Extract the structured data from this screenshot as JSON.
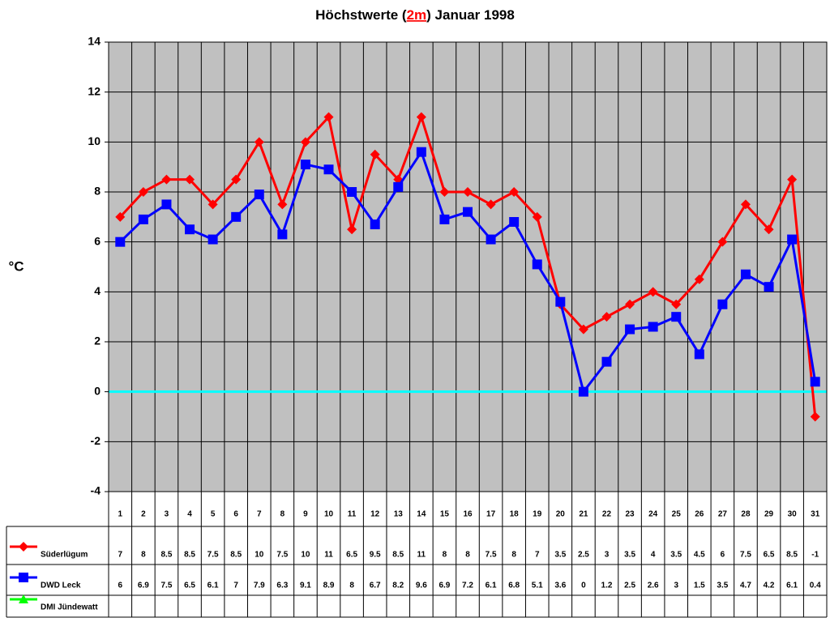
{
  "chart_data": {
    "type": "line",
    "title": [
      "Höchstwerte (",
      "2m",
      ") Januar 1998"
    ],
    "y_label": "°C",
    "categories": [
      "1",
      "2",
      "3",
      "4",
      "5",
      "6",
      "7",
      "8",
      "9",
      "10",
      "11",
      "12",
      "13",
      "14",
      "15",
      "16",
      "17",
      "18",
      "19",
      "20",
      "21",
      "22",
      "23",
      "24",
      "25",
      "26",
      "27",
      "28",
      "29",
      "30",
      "31"
    ],
    "series": [
      {
        "name": "Süderlügum",
        "color": "#ff0000",
        "marker": "diamond",
        "values": [
          7,
          8,
          8.5,
          8.5,
          7.5,
          8.5,
          10,
          7.5,
          10,
          11,
          6.5,
          9.5,
          8.5,
          11,
          8,
          8,
          7.5,
          8,
          7,
          3.5,
          2.5,
          3,
          3.5,
          4,
          3.5,
          4.5,
          6,
          7.5,
          6.5,
          8.5,
          -1
        ]
      },
      {
        "name": "DWD Leck",
        "color": "#0000ff",
        "marker": "square",
        "values": [
          6,
          6.9,
          7.5,
          6.5,
          6.1,
          7,
          7.9,
          6.3,
          9.1,
          8.9,
          8,
          6.7,
          8.2,
          9.6,
          6.9,
          7.2,
          6.1,
          6.8,
          5.1,
          3.6,
          0,
          1.2,
          2.5,
          2.6,
          3,
          1.5,
          3.5,
          4.7,
          4.2,
          6.1,
          0.4
        ]
      },
      {
        "name": "DMI Jündewatt",
        "color": "#00ff00",
        "marker": "triangle",
        "values": [
          null,
          null,
          null,
          null,
          null,
          null,
          null,
          null,
          null,
          null,
          null,
          null,
          null,
          null,
          null,
          null,
          null,
          null,
          null,
          null,
          null,
          null,
          null,
          null,
          null,
          null,
          null,
          null,
          null,
          null,
          null
        ]
      }
    ],
    "ylim": [
      -4,
      14
    ],
    "yticks": [
      -4,
      -2,
      0,
      2,
      4,
      6,
      8,
      10,
      12,
      14
    ],
    "grid": true,
    "reference_line": {
      "value": 0,
      "color": "#00ffff"
    },
    "plot_color": "#c0c0c0"
  }
}
